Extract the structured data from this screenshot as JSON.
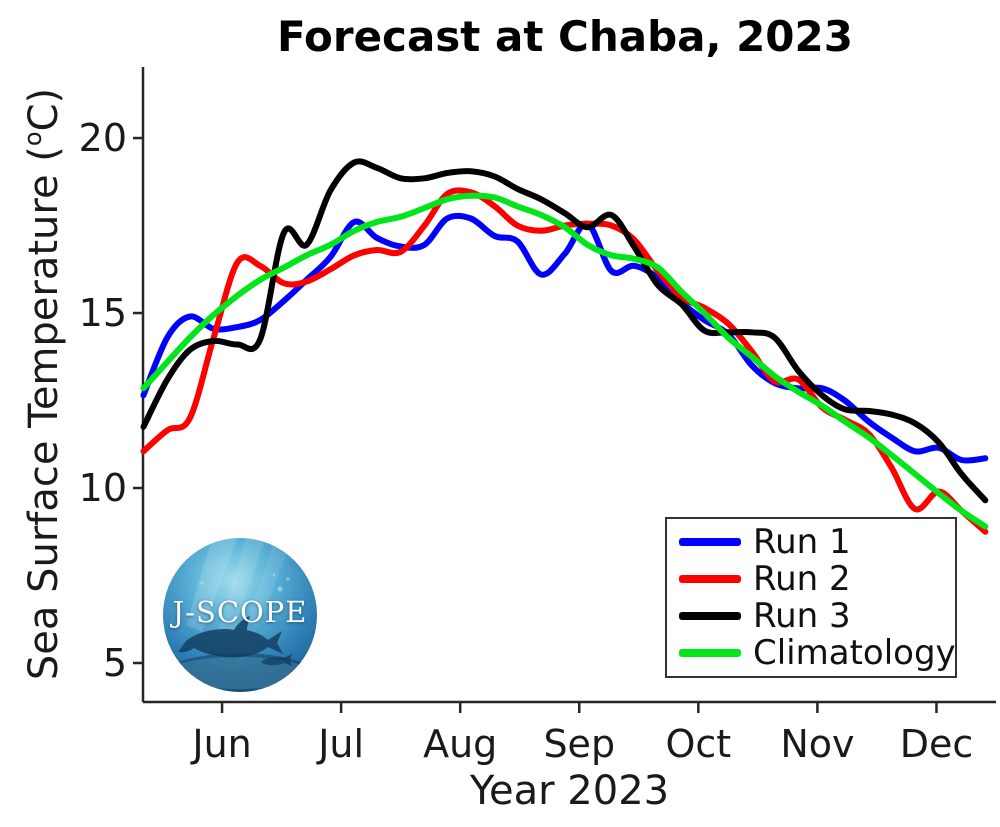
{
  "title": "Forecast at Chaba, 2023",
  "x_axis_label": "Year 2023",
  "y_axis_label": {
    "main": "Sea Surface Temperature (",
    "sup": "o",
    "end": "C)"
  },
  "logo": {
    "text": "J-SCOPE"
  },
  "legend": {
    "items": [
      "Run 1",
      "Run 2",
      "Run 3",
      "Climatology"
    ]
  },
  "chart_data": {
    "type": "line",
    "title": "Forecast at Chaba, 2023",
    "xlabel": "Year 2023",
    "ylabel": "Sea Surface Temperature (°C)",
    "x_units": "month of 2023, fractional (5.34 ≈ May 11, 12.41 ≈ Dec 13)",
    "grid": false,
    "legend_position": "lower right",
    "x_range": [
      5.336,
      12.5
    ],
    "y_range": [
      3.886,
      22.03
    ],
    "x_ticks": [
      6,
      7,
      8,
      9,
      10,
      11,
      12
    ],
    "x_tick_labels": [
      "Jun",
      "Jul",
      "Aug",
      "Sep",
      "Oct",
      "Nov",
      "Dec"
    ],
    "y_ticks": [
      5,
      10,
      15,
      20
    ],
    "y_tick_labels": [
      "5",
      "10",
      "15",
      "20"
    ],
    "x": [
      5.34,
      5.54,
      5.73,
      5.93,
      6.13,
      6.32,
      6.52,
      6.71,
      6.91,
      7.11,
      7.3,
      7.5,
      7.7,
      7.89,
      8.09,
      8.29,
      8.48,
      8.68,
      8.88,
      9.07,
      9.27,
      9.46,
      9.66,
      9.86,
      10.05,
      10.25,
      10.45,
      10.64,
      10.84,
      11.04,
      11.23,
      11.43,
      11.62,
      11.82,
      12.02,
      12.21,
      12.41
    ],
    "series": [
      {
        "name": "Run 1",
        "color": "#0000ff",
        "values": [
          12.65,
          14.3,
          14.9,
          14.55,
          14.6,
          14.8,
          15.35,
          15.95,
          16.6,
          17.6,
          17.15,
          16.9,
          16.95,
          17.7,
          17.7,
          17.2,
          17.05,
          16.1,
          16.7,
          17.55,
          16.2,
          16.35,
          16.0,
          15.3,
          14.8,
          14.4,
          13.5,
          13.0,
          12.85,
          12.85,
          12.5,
          11.9,
          11.45,
          11.05,
          11.15,
          10.8,
          10.85
        ]
      },
      {
        "name": "Run 2",
        "color": "#ff0000",
        "values": [
          11.05,
          11.65,
          12.0,
          14.3,
          16.45,
          16.35,
          15.85,
          15.9,
          16.25,
          16.65,
          16.8,
          16.75,
          17.5,
          18.4,
          18.45,
          18.05,
          17.5,
          17.35,
          17.5,
          17.55,
          17.5,
          17.1,
          16.2,
          15.45,
          15.15,
          14.7,
          13.9,
          13.05,
          13.1,
          12.3,
          11.95,
          11.55,
          10.6,
          9.4,
          9.9,
          9.35,
          8.75
        ]
      },
      {
        "name": "Run 3",
        "color": "#000000",
        "values": [
          11.75,
          13.1,
          13.95,
          14.2,
          14.1,
          14.25,
          17.3,
          16.95,
          18.5,
          19.3,
          19.15,
          18.85,
          18.85,
          19.0,
          19.05,
          18.9,
          18.55,
          18.25,
          17.85,
          17.45,
          17.8,
          16.9,
          15.8,
          15.25,
          14.5,
          14.45,
          14.45,
          14.3,
          13.35,
          12.65,
          12.25,
          12.2,
          12.1,
          11.85,
          11.3,
          10.4,
          9.65
        ]
      },
      {
        "name": "Climatology",
        "color": "#00e61a",
        "values": [
          12.85,
          13.6,
          14.3,
          14.95,
          15.5,
          15.95,
          16.3,
          16.65,
          16.95,
          17.35,
          17.6,
          17.75,
          18.0,
          18.25,
          18.35,
          18.3,
          18.05,
          17.8,
          17.45,
          16.95,
          16.65,
          16.55,
          16.3,
          15.6,
          15.0,
          14.3,
          13.75,
          13.2,
          12.75,
          12.35,
          11.9,
          11.45,
          10.95,
          10.4,
          9.85,
          9.35,
          8.9
        ]
      }
    ]
  }
}
